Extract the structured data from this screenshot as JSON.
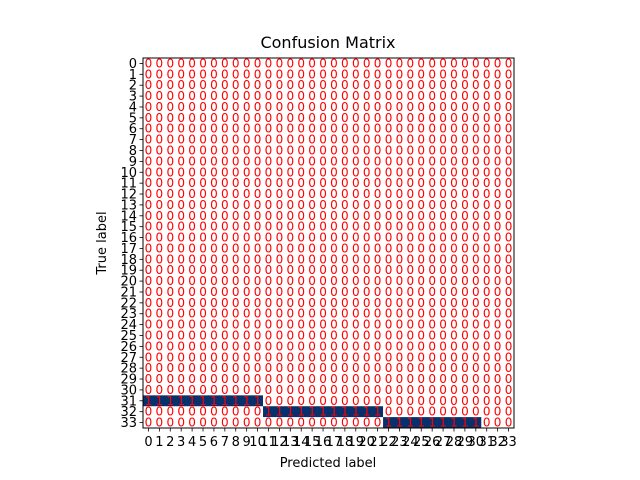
{
  "chart_data": {
    "type": "heatmap",
    "title": "Confusion Matrix",
    "xlabel": "Predicted label",
    "ylabel": "True label",
    "row_labels": [
      "0",
      "1",
      "2",
      "3",
      "4",
      "5",
      "6",
      "7",
      "8",
      "9",
      "10",
      "11",
      "12",
      "13",
      "14",
      "15",
      "16",
      "17",
      "18",
      "19",
      "20",
      "21",
      "22",
      "23",
      "24",
      "25",
      "26",
      "27",
      "28",
      "29",
      "30",
      "31",
      "32",
      "33"
    ],
    "col_labels": [
      "0",
      "1",
      "2",
      "3",
      "4",
      "5",
      "6",
      "7",
      "8",
      "9",
      "10",
      "11",
      "12",
      "13",
      "14",
      "15",
      "16",
      "17",
      "18",
      "19",
      "20",
      "21",
      "22",
      "23",
      "24",
      "25",
      "26",
      "27",
      "28",
      "29",
      "30",
      "31",
      "32",
      "33"
    ],
    "nonzero_cells": [
      {
        "row": 31,
        "cols": [
          0,
          1,
          2,
          3,
          4,
          5,
          6,
          7,
          8,
          9,
          10
        ],
        "value": 1
      },
      {
        "row": 32,
        "cols": [
          11,
          12,
          13,
          14,
          15,
          16,
          17,
          18,
          19,
          20,
          21
        ],
        "value": 1
      },
      {
        "row": 33,
        "cols": [
          22,
          23,
          24,
          25,
          26,
          27,
          28,
          29,
          30
        ],
        "value": 1
      }
    ],
    "default_value": 0,
    "annotation_color": "#ff0000",
    "low_color": "#ffffff",
    "high_color": "#08306b"
  }
}
